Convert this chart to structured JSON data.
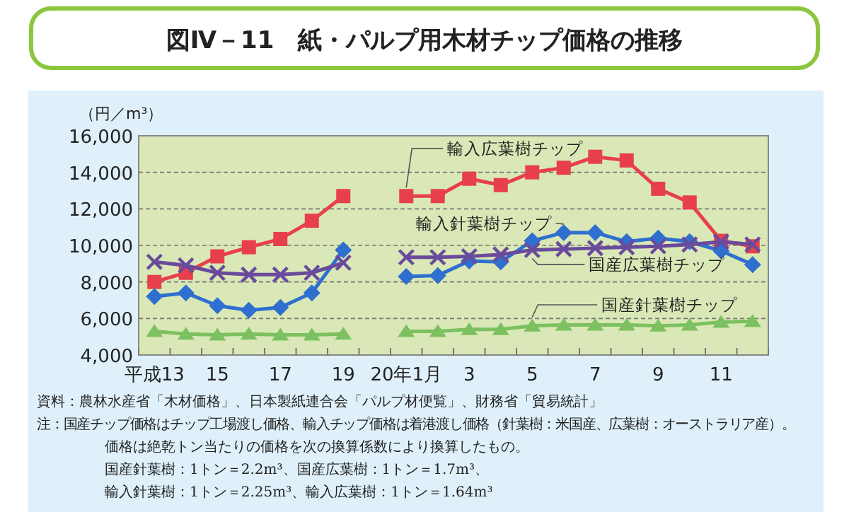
{
  "chart_data": {
    "type": "line",
    "title": "図Ⅳ－11　紙・パルプ用木材チップ価格の推移",
    "ylabel": "（円／m³）",
    "categories": [
      "平成13",
      null,
      "15",
      null,
      "17",
      null,
      "19",
      null,
      "20年1月",
      null,
      "3",
      null,
      "5",
      null,
      "7",
      null,
      "9",
      null,
      "11",
      null
    ],
    "series": [
      {
        "name": "輸入広葉樹チップ",
        "color": "#e8404a",
        "marker": "square",
        "values": [
          8000,
          8500,
          9400,
          9900,
          10350,
          11350,
          12700,
          null,
          12700,
          12700,
          13650,
          13300,
          14000,
          14250,
          14850,
          14650,
          13100,
          12350,
          10250,
          9950
        ]
      },
      {
        "name": "輸入針葉樹チップ",
        "color": "#2f6fd0",
        "marker": "diamond",
        "values": [
          7200,
          7400,
          6700,
          6450,
          6600,
          7400,
          9750,
          null,
          8300,
          8350,
          9150,
          9100,
          10250,
          10700,
          10700,
          10200,
          10400,
          10200,
          9700,
          8950
        ]
      },
      {
        "name": "国産広葉樹チップ",
        "color": "#6a4a9c",
        "marker": "cross",
        "values": [
          9100,
          8900,
          8500,
          8400,
          8400,
          8500,
          9050,
          null,
          9350,
          9350,
          9400,
          9500,
          9750,
          9800,
          9850,
          9900,
          9950,
          10050,
          10200,
          10050
        ]
      },
      {
        "name": "国産針葉樹チップ",
        "color": "#7cc060",
        "marker": "triangle",
        "values": [
          5300,
          5150,
          5100,
          5150,
          5100,
          5100,
          5150,
          null,
          5300,
          5300,
          5400,
          5400,
          5600,
          5650,
          5650,
          5650,
          5600,
          5650,
          5800,
          5850
        ]
      }
    ],
    "ylim": [
      4000,
      16000
    ],
    "yticks": [
      {
        "value": 4000,
        "label": "4,000"
      },
      {
        "value": 6000,
        "label": "6,000"
      },
      {
        "value": 8000,
        "label": "8,000"
      },
      {
        "value": 10000,
        "label": "10,000"
      },
      {
        "value": 12000,
        "label": "12,000"
      },
      {
        "value": 14000,
        "label": "14,000"
      },
      {
        "value": 16000,
        "label": "16,000"
      }
    ],
    "grid": "y",
    "legend": false,
    "line_style": "solid",
    "annotations": [
      "資料：農林水産省「木材価格」、日本製紙連合会「パルプ材便覧」、財務省「貿易統計」",
      "注：国産チップ価格はチップ工場渡し価格、輸入チップ価格は着港渡し価格（針葉樹：米国産、広葉樹：オーストラリア産）。",
      "価格は絶乾トン当たりの価格を次の換算係数により換算したもの。",
      "国産針葉樹：1トン＝2.2m³、国産広葉樹：1トン＝1.7m³、",
      "輸入針葉樹：1トン＝2.25m³、輸入広葉樹：1トン＝1.64m³"
    ]
  }
}
